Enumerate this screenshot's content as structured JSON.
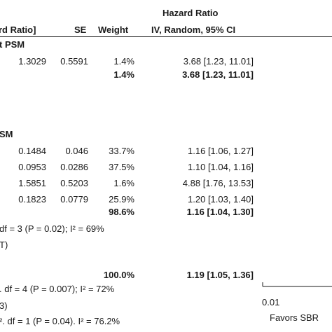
{
  "header": {
    "hazard_ratio_title": "Hazard Ratio",
    "col_log_hr": "rd Ratio]",
    "col_se": "SE",
    "col_weight": "Weight",
    "col_ci": "IV, Random, 95% CI"
  },
  "groups": [
    {
      "label": "t PSM",
      "rows": [
        {
          "log_hr": "1.3029",
          "se": "0.5591",
          "weight": "1.4%",
          "ci": "3.68 [1.23, 11.01]"
        }
      ],
      "subtotal": {
        "weight": "1.4%",
        "ci": "3.68 [1.23, 11.01]"
      }
    },
    {
      "label": "SM",
      "rows": [
        {
          "log_hr": "0.1484",
          "se": "0.046",
          "weight": "33.7%",
          "ci": "1.16 [1.06, 1.27]"
        },
        {
          "log_hr": "0.0953",
          "se": "0.0286",
          "weight": "37.5%",
          "ci": "1.10 [1.04, 1.16]"
        },
        {
          "log_hr": "1.5851",
          "se": "0.5203",
          "weight": "1.6%",
          "ci": "4.88 [1.76, 13.53]"
        },
        {
          "log_hr": "0.1823",
          "se": "0.0779",
          "weight": "25.9%",
          "ci": "1.20 [1.03, 1.40]"
        }
      ],
      "subtotal": {
        "weight": "98.6%",
        "ci": "1.16 [1.04, 1.30]"
      },
      "heterogeneity": "df = 3 (P = 0.02); I² = 69%",
      "overall_effect": "T)"
    }
  ],
  "total": {
    "weight": "100.0%",
    "ci": "1.19 [1.05, 1.36]",
    "heterogeneity": ". df = 4 (P = 0.007); I² = 72%",
    "overall_effect": "3)",
    "subgroup_diff": "². df = 1 (P = 0.04). I² = 76.2%"
  },
  "chart_data": {
    "type": "table",
    "title": "Hazard Ratio",
    "columns": [
      "log[Hazard Ratio]",
      "SE",
      "Weight",
      "IV, Random, 95% CI"
    ],
    "rows": [
      {
        "group": "PSM (partial label)",
        "log_hr": 1.3029,
        "se": 0.5591,
        "weight": 1.4,
        "hr": 3.68,
        "ci_low": 1.23,
        "ci_high": 11.01
      },
      {
        "group": "SM (partial label)",
        "log_hr": 0.1484,
        "se": 0.046,
        "weight": 33.7,
        "hr": 1.16,
        "ci_low": 1.06,
        "ci_high": 1.27
      },
      {
        "group": "SM (partial label)",
        "log_hr": 0.0953,
        "se": 0.0286,
        "weight": 37.5,
        "hr": 1.1,
        "ci_low": 1.04,
        "ci_high": 1.16
      },
      {
        "group": "SM (partial label)",
        "log_hr": 1.5851,
        "se": 0.5203,
        "weight": 1.6,
        "hr": 4.88,
        "ci_low": 1.76,
        "ci_high": 13.53
      },
      {
        "group": "SM (partial label)",
        "log_hr": 0.1823,
        "se": 0.0779,
        "weight": 25.9,
        "hr": 1.2,
        "ci_low": 1.03,
        "ci_high": 1.4
      }
    ],
    "subtotals": [
      {
        "weight": 1.4,
        "hr": 3.68,
        "ci_low": 1.23,
        "ci_high": 11.01
      },
      {
        "weight": 98.6,
        "hr": 1.16,
        "ci_low": 1.04,
        "ci_high": 1.3
      }
    ],
    "total": {
      "weight": 100.0,
      "hr": 1.19,
      "ci_low": 1.05,
      "ci_high": 1.36
    },
    "axis": {
      "scale": "log",
      "ticks": [
        "0.01"
      ],
      "favors_left": "Favors SBR"
    }
  }
}
